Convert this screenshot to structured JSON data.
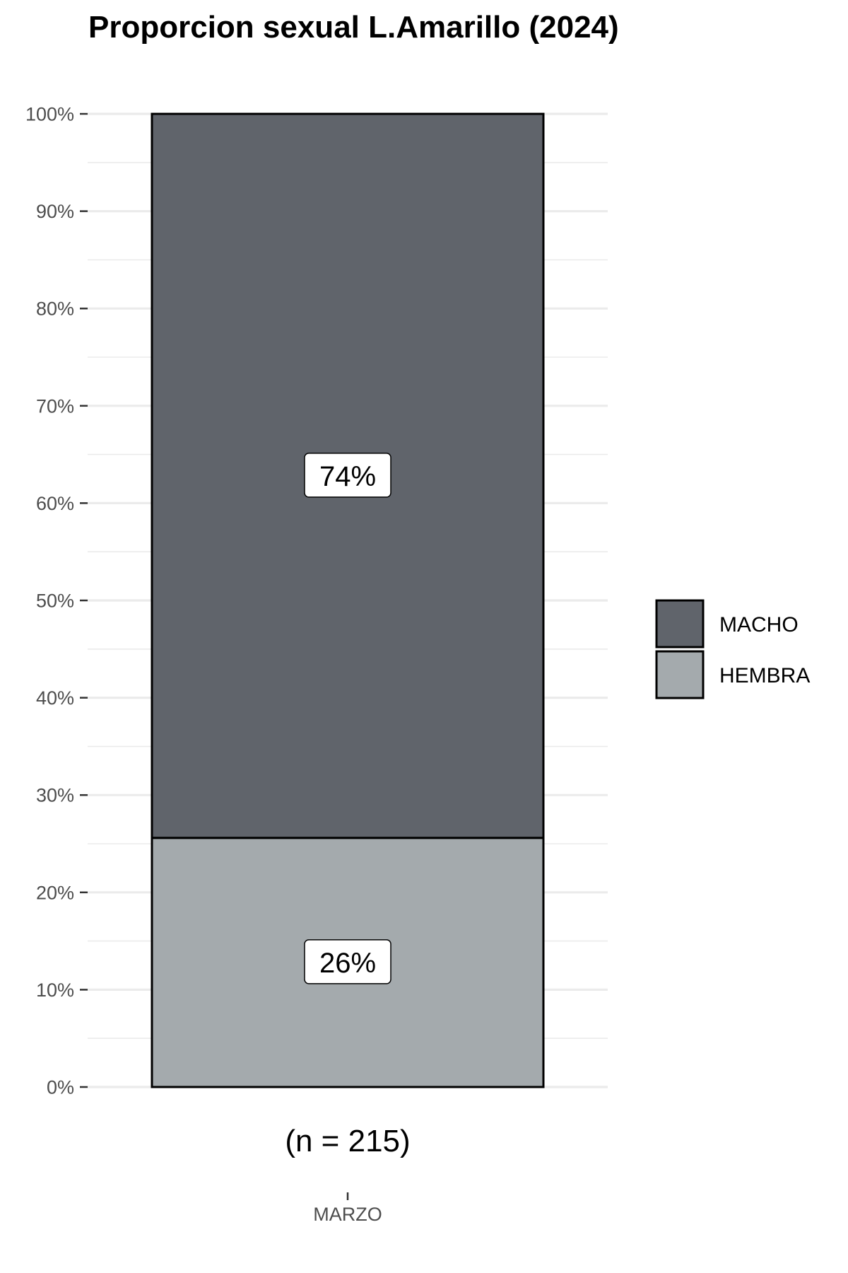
{
  "chart_data": {
    "type": "bar",
    "stacked": true,
    "title": "Proporcion sexual L.Amarillo (2024)",
    "categories": [
      "MARZO"
    ],
    "series": [
      {
        "name": "HEMBRA",
        "values": [
          25.6
        ],
        "label": "26%",
        "color": "#a4aaad"
      },
      {
        "name": "MACHO",
        "values": [
          74.4
        ],
        "label": "74%",
        "color": "#60646b"
      }
    ],
    "annotations": [
      "(n = 215)"
    ],
    "y_ticks": [
      "0%",
      "10%",
      "20%",
      "30%",
      "40%",
      "50%",
      "60%",
      "70%",
      "80%",
      "90%",
      "100%"
    ],
    "ylim": [
      0,
      100
    ],
    "grid": true,
    "legend": {
      "position": "right",
      "entries": [
        "MACHO",
        "HEMBRA"
      ]
    },
    "xlabel": "",
    "ylabel": ""
  }
}
